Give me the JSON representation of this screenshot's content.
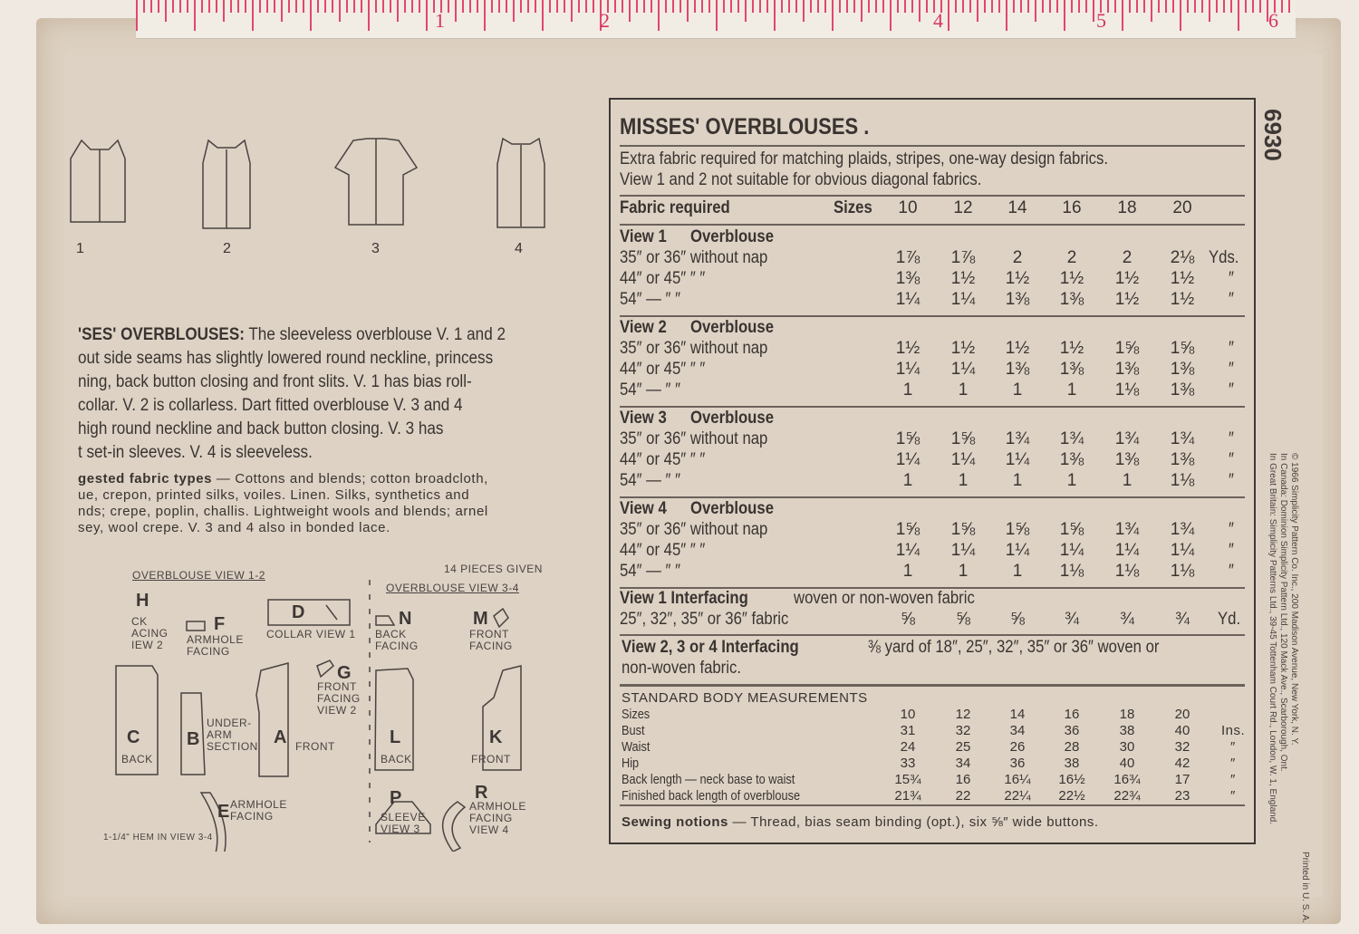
{
  "tape": {
    "numbers": [
      "1",
      "2",
      "4",
      "5",
      "6"
    ]
  },
  "pattern_number": "6930",
  "views": [
    "1",
    "2",
    "3",
    "4"
  ],
  "description": {
    "lines": [
      [
        "'SES' OVERBLOUSES:",
        " The sleeveless overblouse V. 1 and 2"
      ],
      [
        "",
        "out side seams has slightly lowered round neckline, princess"
      ],
      [
        "",
        "ning, back button closing and front slits. V. 1 has bias roll-"
      ],
      [
        "",
        "collar. V. 2 is collarless. Dart fitted overblouse V. 3 and 4"
      ],
      [
        "",
        "high round neckline and back button closing. V. 3 has"
      ],
      [
        "",
        "t set-in sleeves. V. 4 is sleeveless."
      ]
    ],
    "suggested_label": "gested fabric types",
    "suggested_lines": [
      " — Cottons and blends; cotton broadcloth,",
      "ue, crepon, printed silks, voiles. Linen. Silks, synthetics and",
      "nds; crepe, poplin, challis. Lightweight wools and blends; arnel",
      "sey, wool crepe. V. 3 and 4 also in bonded lace."
    ]
  },
  "pieces": {
    "group1_title": "OVERBLOUSE VIEW 1-2",
    "group2_title": "OVERBLOUSE VIEW 3-4",
    "count": "14 PIECES GIVEN",
    "hem_note": "1-1/4\" HEM IN VIEW 3-4",
    "items": [
      {
        "letter": "H",
        "label": "CK\nACING\nIEW 2"
      },
      {
        "letter": "F",
        "label": "ARMHOLE\nFACING"
      },
      {
        "letter": "D",
        "label": "COLLAR VIEW 1"
      },
      {
        "letter": "G",
        "label": "FRONT\nFACING\nVIEW 2"
      },
      {
        "letter": "C",
        "label": "BACK"
      },
      {
        "letter": "B",
        "label": "UNDER-\nARM\nSECTION"
      },
      {
        "letter": "A",
        "label": "FRONT"
      },
      {
        "letter": "E",
        "label": "ARMHOLE\nFACING"
      },
      {
        "letter": "N",
        "label": "BACK\nFACING"
      },
      {
        "letter": "M",
        "label": "FRONT\nFACING"
      },
      {
        "letter": "L",
        "label": "BACK"
      },
      {
        "letter": "K",
        "label": "FRONT"
      },
      {
        "letter": "P",
        "label": "SLEEVE\nVIEW 3"
      },
      {
        "letter": "R",
        "label": "ARMHOLE\nFACING\nVIEW 4"
      }
    ]
  },
  "chart": {
    "title": "MISSES' OVERBLOUSES .",
    "note1": "Extra fabric required for matching plaids, stripes, one-way design fabrics.",
    "note2": "View 1 and 2 not suitable for obvious diagonal fabrics.",
    "fabric_required": "Fabric required",
    "sizes_label": "Sizes",
    "sizes": [
      "10",
      "12",
      "14",
      "16",
      "18",
      "20"
    ],
    "views": [
      {
        "title": [
          "View 1",
          "Overblouse"
        ],
        "rows": [
          {
            "label": "35″ or 36″ without nap",
            "values": [
              "1⅞",
              "1⅞",
              "2",
              "2",
              "2",
              "2⅛"
            ],
            "unit": "Yds."
          },
          {
            "label": "44″ or 45″     ″     ″",
            "values": [
              "1⅜",
              "1½",
              "1½",
              "1½",
              "1½",
              "1½"
            ],
            "unit": "″"
          },
          {
            "label": "54″     —    ″     ″",
            "values": [
              "1¼",
              "1¼",
              "1⅜",
              "1⅜",
              "1½",
              "1½"
            ],
            "unit": "″"
          }
        ]
      },
      {
        "title": [
          "View 2",
          "Overblouse"
        ],
        "rows": [
          {
            "label": "35″ or 36″ without nap",
            "values": [
              "1½",
              "1½",
              "1½",
              "1½",
              "1⅝",
              "1⅝"
            ],
            "unit": "″"
          },
          {
            "label": "44″ or 45″     ″     ″",
            "values": [
              "1¼",
              "1¼",
              "1⅜",
              "1⅜",
              "1⅜",
              "1⅜"
            ],
            "unit": "″"
          },
          {
            "label": "54″     —    ″     ″",
            "values": [
              "1",
              "1",
              "1",
              "1",
              "1⅛",
              "1⅜"
            ],
            "unit": "″"
          }
        ]
      },
      {
        "title": [
          "View 3",
          "Overblouse"
        ],
        "rows": [
          {
            "label": "35″ or 36″ without nap",
            "values": [
              "1⅝",
              "1⅝",
              "1¾",
              "1¾",
              "1¾",
              "1¾"
            ],
            "unit": "″"
          },
          {
            "label": "44″ or 45″     ″     ″",
            "values": [
              "1¼",
              "1¼",
              "1¼",
              "1⅜",
              "1⅜",
              "1⅜"
            ],
            "unit": "″"
          },
          {
            "label": "54″     —    ″     ″",
            "values": [
              "1",
              "1",
              "1",
              "1",
              "1",
              "1⅛"
            ],
            "unit": "″"
          }
        ]
      },
      {
        "title": [
          "View 4",
          "Overblouse"
        ],
        "rows": [
          {
            "label": "35″ or 36″ without nap",
            "values": [
              "1⅝",
              "1⅝",
              "1⅝",
              "1⅝",
              "1¾",
              "1¾"
            ],
            "unit": "″"
          },
          {
            "label": "44″ or 45″     ″     ″",
            "values": [
              "1¼",
              "1¼",
              "1¼",
              "1¼",
              "1¼",
              "1¼"
            ],
            "unit": "″"
          },
          {
            "label": "54″     —    ″     ″",
            "values": [
              "1",
              "1",
              "1",
              "1⅛",
              "1⅛",
              "1⅛"
            ],
            "unit": "″"
          }
        ]
      }
    ],
    "interfacing1": {
      "title": "View 1   Interfacing",
      "desc": "woven or non-woven fabric",
      "row_label": "25″, 32″, 35″ or 36″ fabric",
      "values": [
        "⅝",
        "⅝",
        "⅝",
        "¾",
        "¾",
        "¾"
      ],
      "unit": "Yd."
    },
    "interfacing2": {
      "title": "View 2, 3 or 4   Interfacing",
      "line1": "⅜ yard of 18″, 25″, 32″, 35″ or 36″ woven or",
      "line2": "non-woven fabric."
    },
    "measurements": {
      "title": "STANDARD BODY MEASUREMENTS",
      "rows": [
        {
          "label": "Sizes",
          "values": [
            "10",
            "12",
            "14",
            "16",
            "18",
            "20"
          ],
          "unit": ""
        },
        {
          "label": "Bust",
          "values": [
            "31",
            "32",
            "34",
            "36",
            "38",
            "40"
          ],
          "unit": "Ins."
        },
        {
          "label": "Waist",
          "values": [
            "24",
            "25",
            "26",
            "28",
            "30",
            "32"
          ],
          "unit": "″"
        },
        {
          "label": "Hip",
          "values": [
            "33",
            "34",
            "36",
            "38",
            "40",
            "42"
          ],
          "unit": "″"
        },
        {
          "label": "Back length — neck base to waist",
          "values": [
            "15¾",
            "16",
            "16¼",
            "16½",
            "16¾",
            "17"
          ],
          "unit": "″"
        },
        {
          "label": "Finished back length of overblouse",
          "values": [
            "21¾",
            "22",
            "22¼",
            "22½",
            "22¾",
            "23"
          ],
          "unit": "″"
        }
      ]
    },
    "notions_label": "Sewing notions",
    "notions_text": " — Thread, bias seam binding (opt.), six ⅝″ wide buttons."
  },
  "copyright": [
    "Printed in U. S. A.",
    "© 1966 Simplicity Pattern Co. Inc., 200 Madison Avenue, New York, N. Y.",
    "In Canada: Dominion Simplicity Pattern Ltd., 120 Mack Ave., Scarborough, Ont.",
    "In Great Britain: Simplicity Patterns Ltd., 39-45 Tottenham Court Rd., London, W. 1, England."
  ]
}
